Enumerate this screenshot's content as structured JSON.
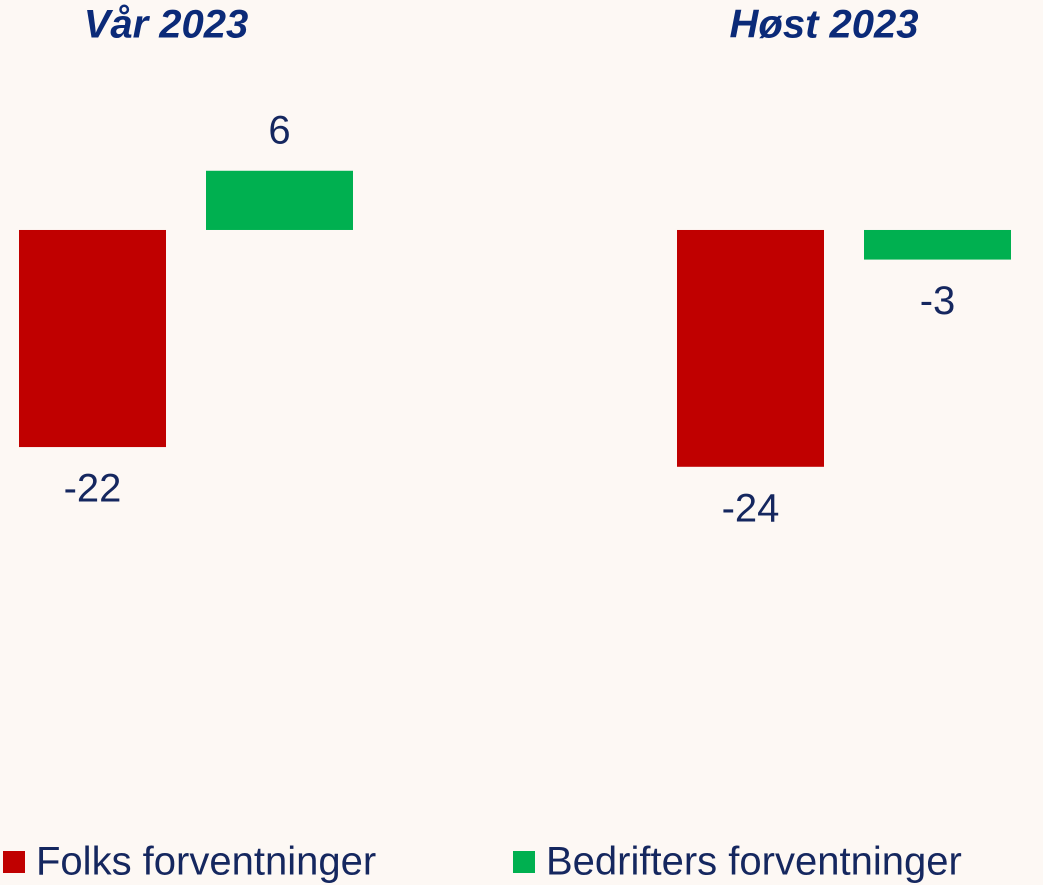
{
  "chart_data": {
    "type": "bar",
    "categories": [
      "Vår 2023",
      "Høst 2023"
    ],
    "series": [
      {
        "name": "Folks forventninger",
        "color": "#c00000",
        "values": [
          -22,
          -24
        ]
      },
      {
        "name": "Bedrifters forventninger",
        "color": "#00b050",
        "values": [
          6,
          -3
        ]
      }
    ],
    "ylim": [
      -30,
      10
    ],
    "legend": "bottom"
  }
}
